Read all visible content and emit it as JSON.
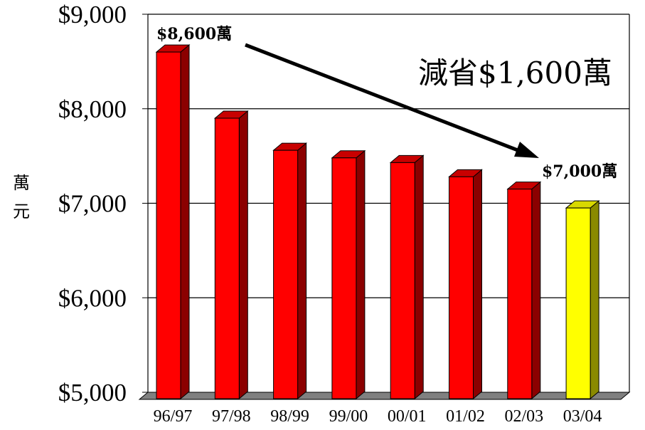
{
  "chart_data": {
    "type": "bar",
    "categories": [
      "96/97",
      "97/98",
      "98/99",
      "99/00",
      "00/01",
      "01/02",
      "02/03",
      "03/04"
    ],
    "values": [
      8600,
      7900,
      7560,
      7480,
      7430,
      7280,
      7150,
      6950
    ],
    "ylim": [
      5000,
      9000
    ],
    "yticks": [
      5000,
      6000,
      7000,
      8000,
      9000
    ],
    "ytick_labels": [
      "$5,000",
      "$6,000",
      "$7,000",
      "$8,000",
      "$9,000"
    ],
    "ylabel_line1": "萬",
    "ylabel_line2": "元",
    "grid": true,
    "bar_color": "#ff0000",
    "bar_side_color": "#8b0000",
    "bar_top_color": "#c80000",
    "highlight_color": "#ffff00",
    "highlight_side_color": "#8a8a00",
    "highlight_top_color": "#d8d800",
    "highlight_index": 7,
    "annotations": {
      "start_label": "$8,600萬",
      "end_label": "$7,000萬",
      "saving_label": "減省$1,600萬"
    }
  }
}
